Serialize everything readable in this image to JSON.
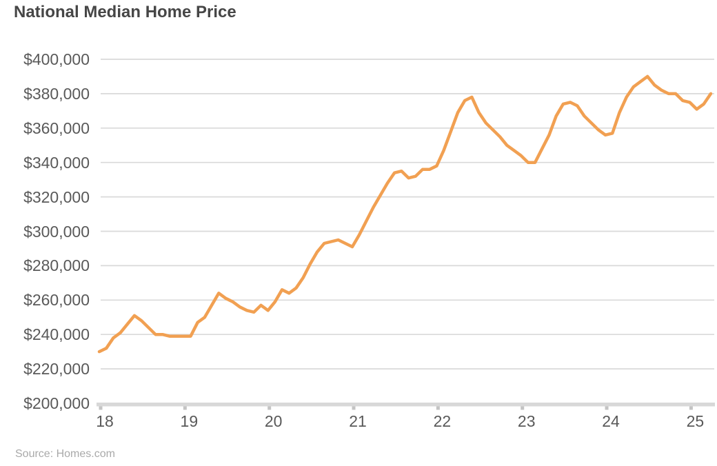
{
  "title": "National Median Home Price",
  "source_label": "Source: Homes.com",
  "colors": {
    "line": "#F1A052",
    "gridline": "#D9D9D9",
    "axis_bar": "#D8D8D8",
    "axis_tick": "#C4C4C4",
    "title_text": "#464646",
    "axis_text": "#595959",
    "source_text": "#A9A9A9",
    "background": "#FFFFFF"
  },
  "chart_data": {
    "type": "line",
    "title": "National Median Home Price",
    "series_name": "National median home price",
    "xlabel": "",
    "ylabel": "",
    "legend": "none",
    "grid": "horizontal",
    "ylim": [
      200000,
      400000
    ],
    "y_tick_step": 20000,
    "y_tick_values": [
      200000,
      220000,
      240000,
      260000,
      280000,
      300000,
      320000,
      340000,
      360000,
      380000,
      400000
    ],
    "y_tick_labels": [
      "$200,000",
      "$220,000",
      "$240,000",
      "$260,000",
      "$280,000",
      "$300,000",
      "$320,000",
      "$340,000",
      "$360,000",
      "$380,000",
      "$400,000"
    ],
    "x_tick_labels": [
      "18",
      "19",
      "20",
      "21",
      "22",
      "23",
      "24",
      "25"
    ],
    "x": [
      "2018-01",
      "2018-02",
      "2018-03",
      "2018-04",
      "2018-05",
      "2018-06",
      "2018-07",
      "2018-08",
      "2018-09",
      "2018-10",
      "2018-11",
      "2018-12",
      "2019-01",
      "2019-02",
      "2019-03",
      "2019-04",
      "2019-05",
      "2019-06",
      "2019-07",
      "2019-08",
      "2019-09",
      "2019-10",
      "2019-11",
      "2019-12",
      "2020-01",
      "2020-02",
      "2020-03",
      "2020-04",
      "2020-05",
      "2020-06",
      "2020-07",
      "2020-08",
      "2020-09",
      "2020-10",
      "2020-11",
      "2020-12",
      "2021-01",
      "2021-02",
      "2021-03",
      "2021-04",
      "2021-05",
      "2021-06",
      "2021-07",
      "2021-08",
      "2021-09",
      "2021-10",
      "2021-11",
      "2021-12",
      "2022-01",
      "2022-02",
      "2022-03",
      "2022-04",
      "2022-05",
      "2022-06",
      "2022-07",
      "2022-08",
      "2022-09",
      "2022-10",
      "2022-11",
      "2022-12",
      "2023-01",
      "2023-02",
      "2023-03",
      "2023-04",
      "2023-05",
      "2023-06",
      "2023-07",
      "2023-08",
      "2023-09",
      "2023-10",
      "2023-11",
      "2023-12",
      "2024-01",
      "2024-02",
      "2024-03",
      "2024-04",
      "2024-05",
      "2024-06",
      "2024-07",
      "2024-08",
      "2024-09",
      "2024-10",
      "2024-11",
      "2024-12",
      "2025-01",
      "2025-02",
      "2025-03",
      "2025-04"
    ],
    "values": [
      230000,
      232000,
      238000,
      241000,
      246000,
      251000,
      248000,
      244000,
      240000,
      240000,
      239000,
      239000,
      239000,
      239000,
      247000,
      250000,
      257000,
      264000,
      261000,
      259000,
      256000,
      254000,
      253000,
      257000,
      254000,
      259000,
      266000,
      264000,
      267000,
      273000,
      281000,
      288000,
      293000,
      294000,
      295000,
      293000,
      291000,
      298000,
      306000,
      314000,
      321000,
      328000,
      334000,
      335000,
      331000,
      332000,
      336000,
      336000,
      338000,
      347000,
      358000,
      369000,
      376000,
      378000,
      369000,
      363000,
      359000,
      355000,
      350000,
      347000,
      344000,
      340000,
      340000,
      348000,
      356000,
      367000,
      374000,
      375000,
      373000,
      367000,
      363000,
      359000,
      356000,
      357000,
      369000,
      378000,
      384000,
      387000,
      390000,
      385000,
      382000,
      380000,
      380000,
      376000,
      375000,
      371000,
      374000,
      380000
    ],
    "source": "Source: Homes.com"
  }
}
